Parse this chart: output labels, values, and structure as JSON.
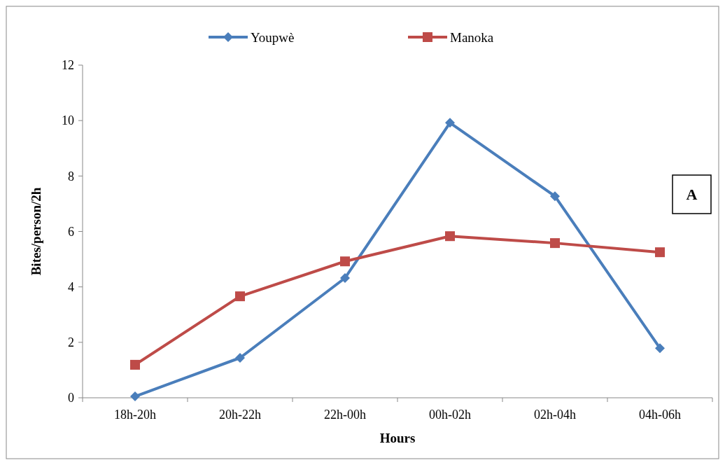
{
  "chart_data": {
    "type": "line",
    "xlabel": "Hours",
    "ylabel": "Bites/person/2h",
    "categories": [
      "18h-20h",
      "20h-22h",
      "22h-00h",
      "00h-02h",
      "02h-04h",
      "04h-06h"
    ],
    "series": [
      {
        "name": "Youpwè",
        "color": "#4a7ebb",
        "marker": "diamond",
        "values": [
          0.05,
          1.44,
          4.32,
          9.92,
          7.27,
          1.79
        ]
      },
      {
        "name": "Manoka",
        "color": "#be4b48",
        "marker": "square",
        "values": [
          1.19,
          3.66,
          4.92,
          5.83,
          5.58,
          5.25
        ]
      }
    ],
    "ylim": [
      0,
      12
    ],
    "yticks": [
      0,
      2,
      4,
      6,
      8,
      10,
      12
    ],
    "grid": false,
    "legend": "top",
    "annotations": [
      "A"
    ]
  }
}
